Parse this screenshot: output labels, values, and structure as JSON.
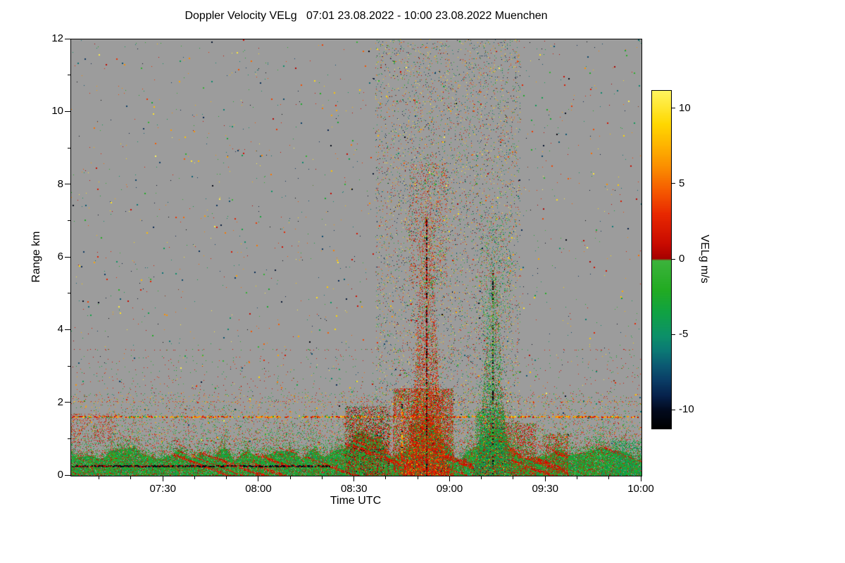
{
  "page": {
    "background": "#ffffff"
  },
  "chart_data": {
    "type": "heatmap",
    "title": "Doppler Velocity VELg   07:01 23.08.2022 - 10:00 23.08.2022 Muenchen",
    "station": "Muenchen",
    "time_span": "07:01 23.08.2022 - 10:00 23.08.2022",
    "xlabel": "Time UTC",
    "ylabel": "Range km",
    "x_axis": {
      "start_label": "07:01",
      "end_label": "10:00",
      "start_minute": 421,
      "end_minute": 600,
      "minor_step_minutes": 10,
      "ticks": [
        {
          "minute": 450,
          "label": "07:30"
        },
        {
          "minute": 480,
          "label": "08:00"
        },
        {
          "minute": 510,
          "label": "08:30"
        },
        {
          "minute": 540,
          "label": "09:00"
        },
        {
          "minute": 570,
          "label": "09:30"
        },
        {
          "minute": 600,
          "label": "10:00"
        }
      ]
    },
    "y_axis": {
      "min": 0,
      "max": 12,
      "ticks": [
        0,
        2,
        4,
        6,
        8,
        10,
        12
      ],
      "minor_step": 1
    },
    "no_data_color": "#9c9c9c",
    "colorbar": {
      "label": "VELg m/s",
      "unit": "m/s",
      "range": [
        -11.2,
        11.2
      ],
      "ticks": [
        10,
        5,
        0,
        -5,
        -10
      ],
      "stops": [
        {
          "v": -11.2,
          "color": "#000000"
        },
        {
          "v": -10.0,
          "color": "#020a1e"
        },
        {
          "v": -9.0,
          "color": "#06224c"
        },
        {
          "v": -8.0,
          "color": "#0a3d66"
        },
        {
          "v": -7.0,
          "color": "#0b5a72"
        },
        {
          "v": -6.0,
          "color": "#0b7a74"
        },
        {
          "v": -5.0,
          "color": "#0c9168"
        },
        {
          "v": -3.5,
          "color": "#10a243"
        },
        {
          "v": -2.0,
          "color": "#22ab22"
        },
        {
          "v": -0.05,
          "color": "#3cb33c"
        },
        {
          "v": 0.05,
          "color": "#a50000"
        },
        {
          "v": 1.0,
          "color": "#c80a00"
        },
        {
          "v": 3.0,
          "color": "#e82800"
        },
        {
          "v": 4.5,
          "color": "#f55800"
        },
        {
          "v": 6.0,
          "color": "#fa8a00"
        },
        {
          "v": 7.5,
          "color": "#feb200"
        },
        {
          "v": 9.0,
          "color": "#ffd800"
        },
        {
          "v": 11.2,
          "color": "#fff560"
        }
      ]
    },
    "render_seed": 20220823,
    "render": {
      "boundary_layer": {
        "base": 0.42,
        "amp": 0.38,
        "fade": 1.15,
        "fill": 0.94,
        "red_zones": [
          [
            479,
            489
          ],
          [
            500,
            547
          ],
          [
            557,
            577
          ]
        ],
        "bumps": [
          {
            "tc": 513,
            "a": 0.55,
            "s": 4
          },
          {
            "tc": 532.6,
            "a": 0.95,
            "s": 3
          },
          {
            "tc": 553.4,
            "a": 0.75,
            "s": 3
          }
        ],
        "green_mode": {
          "v": -2.6,
          "s": 1.4
        },
        "red_mode": {
          "v": 1.6,
          "s": 1.1
        }
      },
      "layers": [
        {
          "kind": "speckle",
          "name": "sparse-noise-1px",
          "t": [
            421,
            600
          ],
          "h": [
            0,
            12
          ],
          "density": 0.0028,
          "size": 1,
          "vrange": [
            -11,
            11
          ]
        },
        {
          "kind": "speckle",
          "name": "sparse-noise-2px",
          "t": [
            421,
            600
          ],
          "h": [
            0,
            12
          ],
          "density": 0.0011,
          "size": 2,
          "vrange": [
            -11,
            11
          ]
        },
        {
          "kind": "speckle",
          "name": "dense-noise-band",
          "t": [
            516.5,
            562
          ],
          "h": [
            0,
            12
          ],
          "density": 0.055,
          "size": 1,
          "vrange": [
            -11,
            11
          ]
        },
        {
          "kind": "speckle",
          "name": "midlevel-speckle",
          "t": [
            421,
            600
          ],
          "h": [
            0.95,
            2.3
          ],
          "density": 0.05,
          "size": 1,
          "modes": [
            {
              "v": 6.5,
              "s": 1.3,
              "w": 0.33
            },
            {
              "v": -2.6,
              "s": 1.3,
              "w": 0.42
            },
            {
              "v": 1.8,
              "s": 1.0,
              "w": 0.25
            }
          ]
        },
        {
          "kind": "speckle",
          "name": "midlevel-faint",
          "t": [
            421,
            600
          ],
          "h": [
            2.3,
            3.3
          ],
          "density": 0.01,
          "size": 1,
          "modes": [
            {
              "v": 2.0,
              "s": 1.2,
              "w": 0.5
            },
            {
              "v": -2.5,
              "s": 1.2,
              "w": 0.5
            }
          ]
        },
        {
          "kind": "hline",
          "name": "streak-3.45km",
          "h": 3.45,
          "t": [
            421,
            600
          ],
          "density": 0.15,
          "thick": 1,
          "modes": [
            {
              "v": 1.5,
              "s": 0.7,
              "w": 0.7
            },
            {
              "v": -2.2,
              "s": 0.8,
              "w": 0.3
            }
          ]
        },
        {
          "kind": "hline",
          "name": "streak-2km",
          "h": 2.02,
          "t": [
            421,
            600
          ],
          "density": 0.22,
          "thick": 1,
          "modes": [
            {
              "v": 6.5,
              "s": 1.0,
              "w": 0.5
            },
            {
              "v": 1.8,
              "s": 0.8,
              "w": 0.5
            }
          ]
        },
        {
          "kind": "hline",
          "name": "streak-1.6km",
          "h": 1.62,
          "t": [
            421,
            600
          ],
          "density": 0.5,
          "thick": 2,
          "modes": [
            {
              "v": 6.8,
              "s": 1.0,
              "w": 0.55
            },
            {
              "v": 2.0,
              "s": 0.8,
              "w": 0.3
            },
            {
              "v": -2.5,
              "s": 1.0,
              "w": 0.15
            }
          ]
        },
        {
          "kind": "boundary_layer",
          "name": "boundary-layer"
        },
        {
          "kind": "hline",
          "name": "dark-line-0.27km",
          "h": 0.27,
          "t": [
            421,
            502
          ],
          "density": 0.85,
          "thick": 2,
          "modes": [
            {
              "v": -10.3,
              "s": 0.5,
              "w": 0.6
            },
            {
              "v": 0.5,
              "s": 0.4,
              "w": 0.4
            }
          ]
        },
        {
          "kind": "speckle",
          "name": "left-edge-red",
          "t": [
            421,
            435
          ],
          "h": [
            0.9,
            1.7
          ],
          "density": 0.13,
          "size": 1,
          "modes": [
            {
              "v": 1.8,
              "s": 0.9,
              "w": 1
            }
          ]
        },
        {
          "kind": "speckle",
          "name": "low-red-0830",
          "t": [
            507,
            521
          ],
          "h": [
            0,
            1.9
          ],
          "density": 0.5,
          "size": 1,
          "modes": [
            {
              "v": 1.4,
              "s": 0.9,
              "w": 0.6
            },
            {
              "v": -2.4,
              "s": 1.0,
              "w": 0.25
            },
            {
              "v": -10,
              "s": 0.8,
              "w": 0.15
            }
          ]
        },
        {
          "kind": "speckle",
          "name": "low-red-plumeA",
          "t": [
            522,
            541
          ],
          "h": [
            0,
            2.4
          ],
          "density": 0.6,
          "size": 1,
          "modes": [
            {
              "v": 1.6,
              "s": 1.0,
              "w": 0.78
            },
            {
              "v": -2.5,
              "s": 1.0,
              "w": 0.22
            }
          ]
        },
        {
          "kind": "speckle",
          "name": "low-green-plumeB",
          "t": [
            548,
            557
          ],
          "h": [
            0,
            1.8
          ],
          "density": 0.55,
          "size": 1,
          "modes": [
            {
              "v": -3.0,
              "s": 1.2,
              "w": 0.8
            },
            {
              "v": 1.6,
              "s": 0.9,
              "w": 0.2
            }
          ]
        },
        {
          "kind": "speckle",
          "name": "low-red-after-B",
          "t": [
            557,
            567
          ],
          "h": [
            0,
            1.45
          ],
          "density": 0.5,
          "size": 1,
          "modes": [
            {
              "v": 1.5,
              "s": 0.9,
              "w": 0.7
            },
            {
              "v": -2.6,
              "s": 1.0,
              "w": 0.3
            }
          ]
        },
        {
          "kind": "speckle",
          "name": "low-red-0930",
          "t": [
            569,
            577
          ],
          "h": [
            0,
            1.15
          ],
          "density": 0.45,
          "size": 1,
          "modes": [
            {
              "v": 1.5,
              "s": 0.9,
              "w": 0.65
            },
            {
              "v": -2.6,
              "s": 1.0,
              "w": 0.35
            }
          ]
        },
        {
          "kind": "speckle",
          "name": "low-teal-right",
          "t": [
            591,
            600
          ],
          "h": [
            0,
            0.95
          ],
          "density": 0.4,
          "size": 1,
          "modes": [
            {
              "v": -4.5,
              "s": 0.8,
              "w": 0.7
            },
            {
              "v": -2.0,
              "s": 0.8,
              "w": 0.3
            }
          ]
        },
        {
          "kind": "plume",
          "name": "updraft-plume-red",
          "tc": 532.6,
          "sigma": 2.6,
          "hmax": 7.4,
          "d0": 0.9,
          "hd": 2.2,
          "d1": 0.12,
          "modes": [
            {
              "v": 1.7,
              "s": 1.1,
              "w": 0.6
            },
            {
              "v": 3.5,
              "s": 1.0,
              "w": 0.13
            },
            {
              "v": -2.6,
              "s": 1.2,
              "w": 0.17
            },
            {
              "v": -8,
              "s": 2.0,
              "w": 0.05
            },
            {
              "v": 8,
              "s": 1.5,
              "w": 0.05
            }
          ],
          "halo": {
            "t": [
              527,
              539
            ],
            "h": [
              5.2,
              8.6
            ],
            "density": 0.1
          }
        },
        {
          "kind": "plume",
          "name": "downdraft-plume-green",
          "tc": 553.4,
          "sigma": 2.3,
          "hmax": 5.9,
          "d0": 0.8,
          "hd": 2.2,
          "d1": 0.1,
          "modes": [
            {
              "v": -3.0,
              "s": 1.2,
              "w": 0.58
            },
            {
              "v": -5.5,
              "s": 1.0,
              "w": 0.12
            },
            {
              "v": 1.6,
              "s": 1.0,
              "w": 0.22
            },
            {
              "v": 8,
              "s": 1.5,
              "w": 0.04
            },
            {
              "v": -9,
              "s": 1.5,
              "w": 0.04
            }
          ],
          "halo": {
            "t": [
              549,
              559
            ],
            "h": [
              4.0,
              7.2
            ],
            "density": 0.07
          }
        },
        {
          "kind": "vline",
          "name": "olive-dashes-0845",
          "t": 525,
          "h": [
            0,
            2.2
          ],
          "density": 0.3,
          "thick": 2,
          "modes": [
            {
              "v": 6.5,
              "s": 1.0,
              "w": 0.6
            },
            {
              "v": -10,
              "s": 0.6,
              "w": 0.4
            }
          ]
        },
        {
          "kind": "vline",
          "name": "plumeA-core-dashes",
          "t": 532.6,
          "h": [
            0,
            7.1
          ],
          "density": 0.5,
          "thick": 2,
          "modes": [
            {
              "v": 0.3,
              "s": 0.3,
              "w": 0.65
            },
            {
              "v": -10.5,
              "s": 0.4,
              "w": 0.35
            }
          ]
        },
        {
          "kind": "vline",
          "name": "plumeB-core-dashes",
          "t": 553.4,
          "h": [
            0,
            5.7
          ],
          "density": 0.4,
          "thick": 2,
          "modes": [
            {
              "v": -0.3,
              "s": 0.3,
              "w": 0.6
            },
            {
              "v": -10.5,
              "s": 0.5,
              "w": 0.4
            }
          ]
        }
      ]
    }
  }
}
